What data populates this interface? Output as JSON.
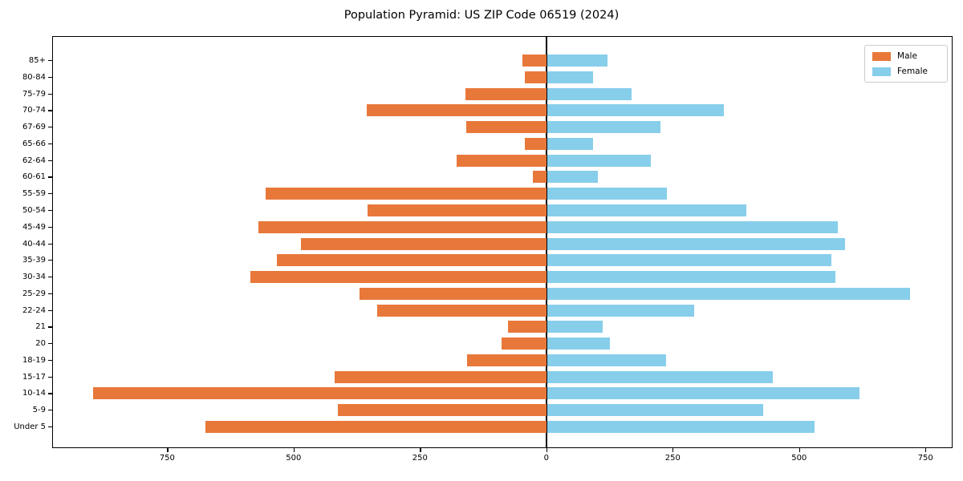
{
  "title": "Population Pyramid: US ZIP Code 06519 (2024)",
  "legend": {
    "male": "Male",
    "female": "Female"
  },
  "colors": {
    "male": "#e8783a",
    "female": "#87ceeb",
    "axis": "#000000",
    "legend_border": "#cccccc",
    "background": "#ffffff"
  },
  "chart_data": {
    "type": "bar",
    "orientation": "horizontal-pyramid",
    "title": "Population Pyramid: US ZIP Code 06519 (2024)",
    "categories": [
      "85+",
      "80-84",
      "75-79",
      "70-74",
      "67-69",
      "65-66",
      "62-64",
      "60-61",
      "55-59",
      "50-54",
      "45-49",
      "40-44",
      "35-39",
      "30-34",
      "25-29",
      "22-24",
      "21",
      "20",
      "18-19",
      "15-17",
      "10-14",
      "5-9",
      "Under 5"
    ],
    "series": [
      {
        "name": "Male",
        "side": "left",
        "values": [
          48,
          42,
          160,
          355,
          158,
          43,
          177,
          26,
          556,
          354,
          570,
          485,
          533,
          586,
          369,
          335,
          76,
          88,
          157,
          418,
          897,
          412,
          675
        ]
      },
      {
        "name": "Female",
        "side": "right",
        "values": [
          120,
          92,
          167,
          350,
          224,
          91,
          205,
          101,
          238,
          394,
          576,
          589,
          563,
          571,
          719,
          291,
          111,
          125,
          236,
          447,
          618,
          427,
          529
        ]
      }
    ],
    "xtick_values": [
      -750,
      -500,
      -250,
      0,
      250,
      500,
      750
    ],
    "xtick_labels": [
      "750",
      "500",
      "250",
      "0",
      "250",
      "500",
      "750"
    ],
    "xlim": [
      -976,
      802
    ],
    "grid": false,
    "legend_position": "upper right"
  }
}
